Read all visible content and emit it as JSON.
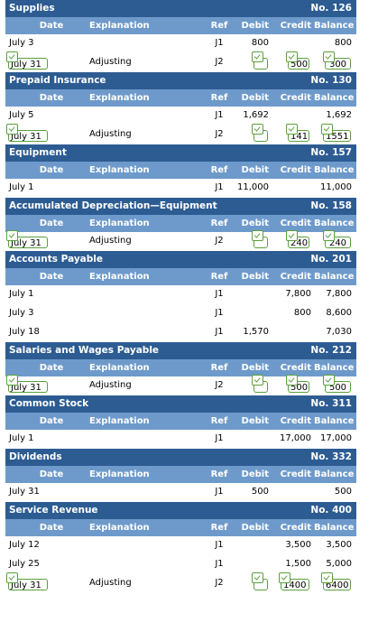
{
  "headers": {
    "date": "Date",
    "explanation": "Explanation",
    "ref": "Ref",
    "debit": "Debit",
    "credit": "Credit",
    "balance": "Balance"
  },
  "accounts": [
    {
      "name": "Supplies",
      "no": "No. 126",
      "rows": [
        {
          "date": "July 3",
          "exp": "",
          "ref": "J1",
          "debit": "800",
          "credit": "",
          "bal": "800"
        },
        {
          "date": "July 31",
          "exp": "Adjusting",
          "ref": "J2",
          "debit": "",
          "credit": "500",
          "bal": "300",
          "input": true
        }
      ]
    },
    {
      "name": "Prepaid Insurance",
      "no": "No. 130",
      "rows": [
        {
          "date": "July 5",
          "exp": "",
          "ref": "J1",
          "debit": "1,692",
          "credit": "",
          "bal": "1,692"
        },
        {
          "date": "July 31",
          "exp": "Adjusting",
          "ref": "J2",
          "debit": "",
          "credit": "141",
          "bal": "1551",
          "input": true
        }
      ]
    },
    {
      "name": "Equipment",
      "no": "No. 157",
      "rows": [
        {
          "date": "July 1",
          "exp": "",
          "ref": "J1",
          "debit": "11,000",
          "credit": "",
          "bal": "11,000"
        }
      ]
    },
    {
      "name": "Accumulated Depreciation—Equipment",
      "no": "No. 158",
      "rows": [
        {
          "date": "July 31",
          "exp": "Adjusting",
          "ref": "J2",
          "debit": "",
          "credit": "240",
          "bal": "240",
          "input": true
        }
      ]
    },
    {
      "name": "Accounts Payable",
      "no": "No. 201",
      "rows": [
        {
          "date": "July 1",
          "exp": "",
          "ref": "J1",
          "debit": "",
          "credit": "7,800",
          "bal": "7,800"
        },
        {
          "date": "July 3",
          "exp": "",
          "ref": "J1",
          "debit": "",
          "credit": "800",
          "bal": "8,600"
        },
        {
          "date": "July 18",
          "exp": "",
          "ref": "J1",
          "debit": "1,570",
          "credit": "",
          "bal": "7,030"
        }
      ]
    },
    {
      "name": "Salaries and Wages Payable",
      "no": "No. 212",
      "rows": [
        {
          "date": "July 31",
          "exp": "Adjusting",
          "ref": "J2",
          "debit": "",
          "credit": "500",
          "bal": "500",
          "input": true
        }
      ]
    },
    {
      "name": "Common Stock",
      "no": "No. 311",
      "rows": [
        {
          "date": "July 1",
          "exp": "",
          "ref": "J1",
          "debit": "",
          "credit": "17,000",
          "bal": "17,000"
        }
      ]
    },
    {
      "name": "Dividends",
      "no": "No. 332",
      "rows": [
        {
          "date": "July 31",
          "exp": "",
          "ref": "J1",
          "debit": "500",
          "credit": "",
          "bal": "500"
        }
      ]
    },
    {
      "name": "Service Revenue",
      "no": "No. 400",
      "rows": [
        {
          "date": "July 12",
          "exp": "",
          "ref": "J1",
          "debit": "",
          "credit": "3,500",
          "bal": "3,500"
        },
        {
          "date": "July 25",
          "exp": "",
          "ref": "J1",
          "debit": "",
          "credit": "1,500",
          "bal": "5,000"
        },
        {
          "date": "July 31",
          "exp": "Adjusting",
          "ref": "J2",
          "debit": "",
          "credit": "1400",
          "bal": "6400",
          "input": true
        }
      ]
    }
  ],
  "colors": {
    "title_bg": "#2d5c92",
    "header_bg": "#6e9acb",
    "check_green": "#5aa03c"
  }
}
